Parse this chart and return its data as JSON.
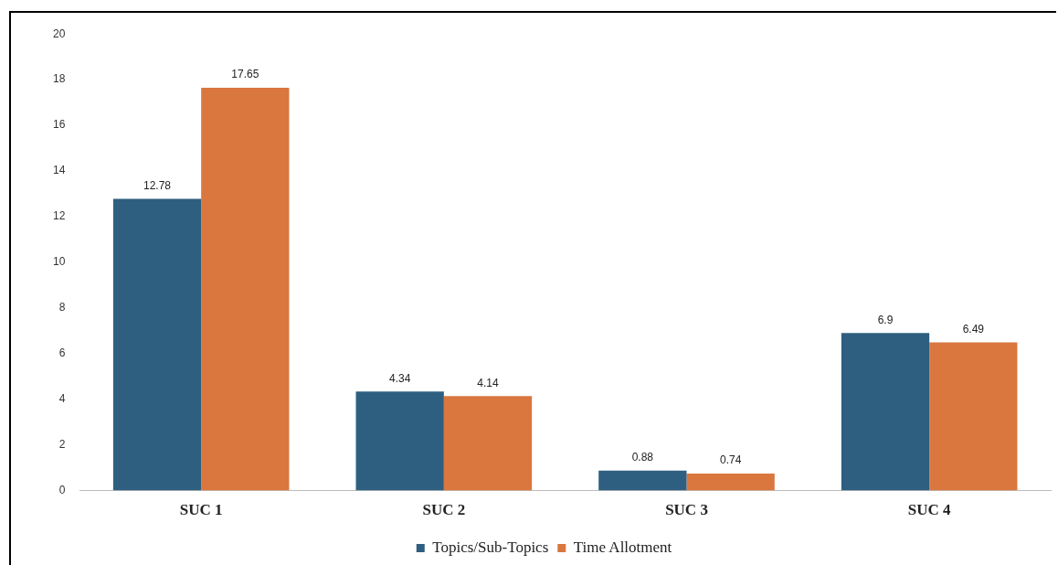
{
  "chart_data": {
    "type": "bar",
    "categories": [
      "SUC 1",
      "SUC 2",
      "SUC 3",
      "SUC 4"
    ],
    "series": [
      {
        "name": "Topics/Sub-Topics",
        "color": "#2e5f80",
        "values": [
          12.78,
          4.34,
          0.88,
          6.9
        ]
      },
      {
        "name": "Time Allotment",
        "color": "#d9773f",
        "values": [
          17.65,
          4.14,
          0.74,
          6.49
        ]
      }
    ],
    "ylim": [
      0,
      20
    ],
    "yticks": [
      0,
      2,
      4,
      6,
      8,
      10,
      12,
      14,
      16,
      18,
      20
    ],
    "grid": false,
    "legend": "bottom",
    "data_labels": true
  }
}
